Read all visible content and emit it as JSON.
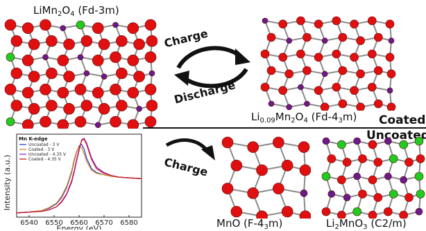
{
  "structures": {
    "top_left_formula": "LiMn",
    "top_left_sub": "2",
    "top_left_formula_b": "O",
    "top_left_sub_b": "4",
    "top_left_space": "Fd-3m",
    "top_right_a": "Li",
    "top_right_sub1": "0.09",
    "top_right_b": "Mn",
    "top_right_sub2": "2",
    "top_right_c": "O",
    "top_right_sub3": "4",
    "top_right_space_a": "Fd-4",
    "top_right_space_sub": "3",
    "top_right_space_b": "m",
    "mno_a": "MnO (F-4",
    "mno_sub": "3",
    "mno_b": "m)",
    "li2_a": "Li",
    "li2_sub1": "2",
    "li2_b": "MnO",
    "li2_sub2": "3",
    "li2_c": "(C2/m)"
  },
  "arrows": {
    "charge_top": "Charge",
    "discharge": "Discharge",
    "charge_bottom": "Charge"
  },
  "sides": {
    "coated": "Coated",
    "uncoated": "Uncoated"
  },
  "chart_data": {
    "type": "line",
    "title": "Mn K-edge",
    "xlabel": "Energy (eV)",
    "ylabel": "Intensity (a.u.)",
    "xlim": [
      6535,
      6585
    ],
    "x_ticks": [
      6540,
      6550,
      6560,
      6570,
      6580
    ],
    "series": [
      {
        "name": "Uncoated - 3 V",
        "color": "#3344cc",
        "x": [
          6535,
          6540,
          6545,
          6548,
          6551,
          6553,
          6555,
          6557,
          6558,
          6559,
          6560,
          6561,
          6562,
          6563,
          6565,
          6567,
          6570,
          6573,
          6576,
          6580,
          6585
        ],
        "y": [
          0.02,
          0.03,
          0.05,
          0.08,
          0.14,
          0.22,
          0.35,
          0.55,
          0.7,
          0.82,
          0.9,
          0.92,
          0.86,
          0.74,
          0.6,
          0.55,
          0.52,
          0.5,
          0.49,
          0.48,
          0.47
        ]
      },
      {
        "name": "Coated - 3 V",
        "color": "#d08a20",
        "x": [
          6535,
          6540,
          6545,
          6548,
          6551,
          6553,
          6555,
          6557,
          6558,
          6559,
          6560,
          6561,
          6562,
          6563,
          6565,
          6567,
          6570,
          6573,
          6576,
          6580,
          6585
        ],
        "y": [
          0.02,
          0.03,
          0.05,
          0.09,
          0.15,
          0.24,
          0.37,
          0.57,
          0.72,
          0.83,
          0.89,
          0.88,
          0.8,
          0.7,
          0.58,
          0.54,
          0.52,
          0.5,
          0.49,
          0.48,
          0.47
        ]
      },
      {
        "name": "Uncoated - 4.35 V",
        "color": "#8a2be2",
        "x": [
          6535,
          6540,
          6545,
          6548,
          6551,
          6553,
          6555,
          6557,
          6558,
          6559,
          6560,
          6561,
          6562,
          6563,
          6565,
          6567,
          6570,
          6573,
          6576,
          6580,
          6585
        ],
        "y": [
          0.02,
          0.03,
          0.04,
          0.06,
          0.1,
          0.16,
          0.26,
          0.42,
          0.55,
          0.7,
          0.84,
          0.98,
          1.0,
          0.94,
          0.74,
          0.62,
          0.55,
          0.51,
          0.49,
          0.48,
          0.47
        ]
      },
      {
        "name": "Coated - 4.35 V",
        "color": "#cc1a1a",
        "x": [
          6535,
          6540,
          6545,
          6548,
          6551,
          6553,
          6555,
          6557,
          6558,
          6559,
          6560,
          6561,
          6562,
          6563,
          6565,
          6567,
          6570,
          6573,
          6576,
          6580,
          6585
        ],
        "y": [
          0.02,
          0.03,
          0.04,
          0.06,
          0.1,
          0.17,
          0.27,
          0.44,
          0.57,
          0.72,
          0.86,
          0.97,
          0.99,
          0.92,
          0.72,
          0.6,
          0.54,
          0.51,
          0.49,
          0.48,
          0.47
        ]
      }
    ]
  }
}
